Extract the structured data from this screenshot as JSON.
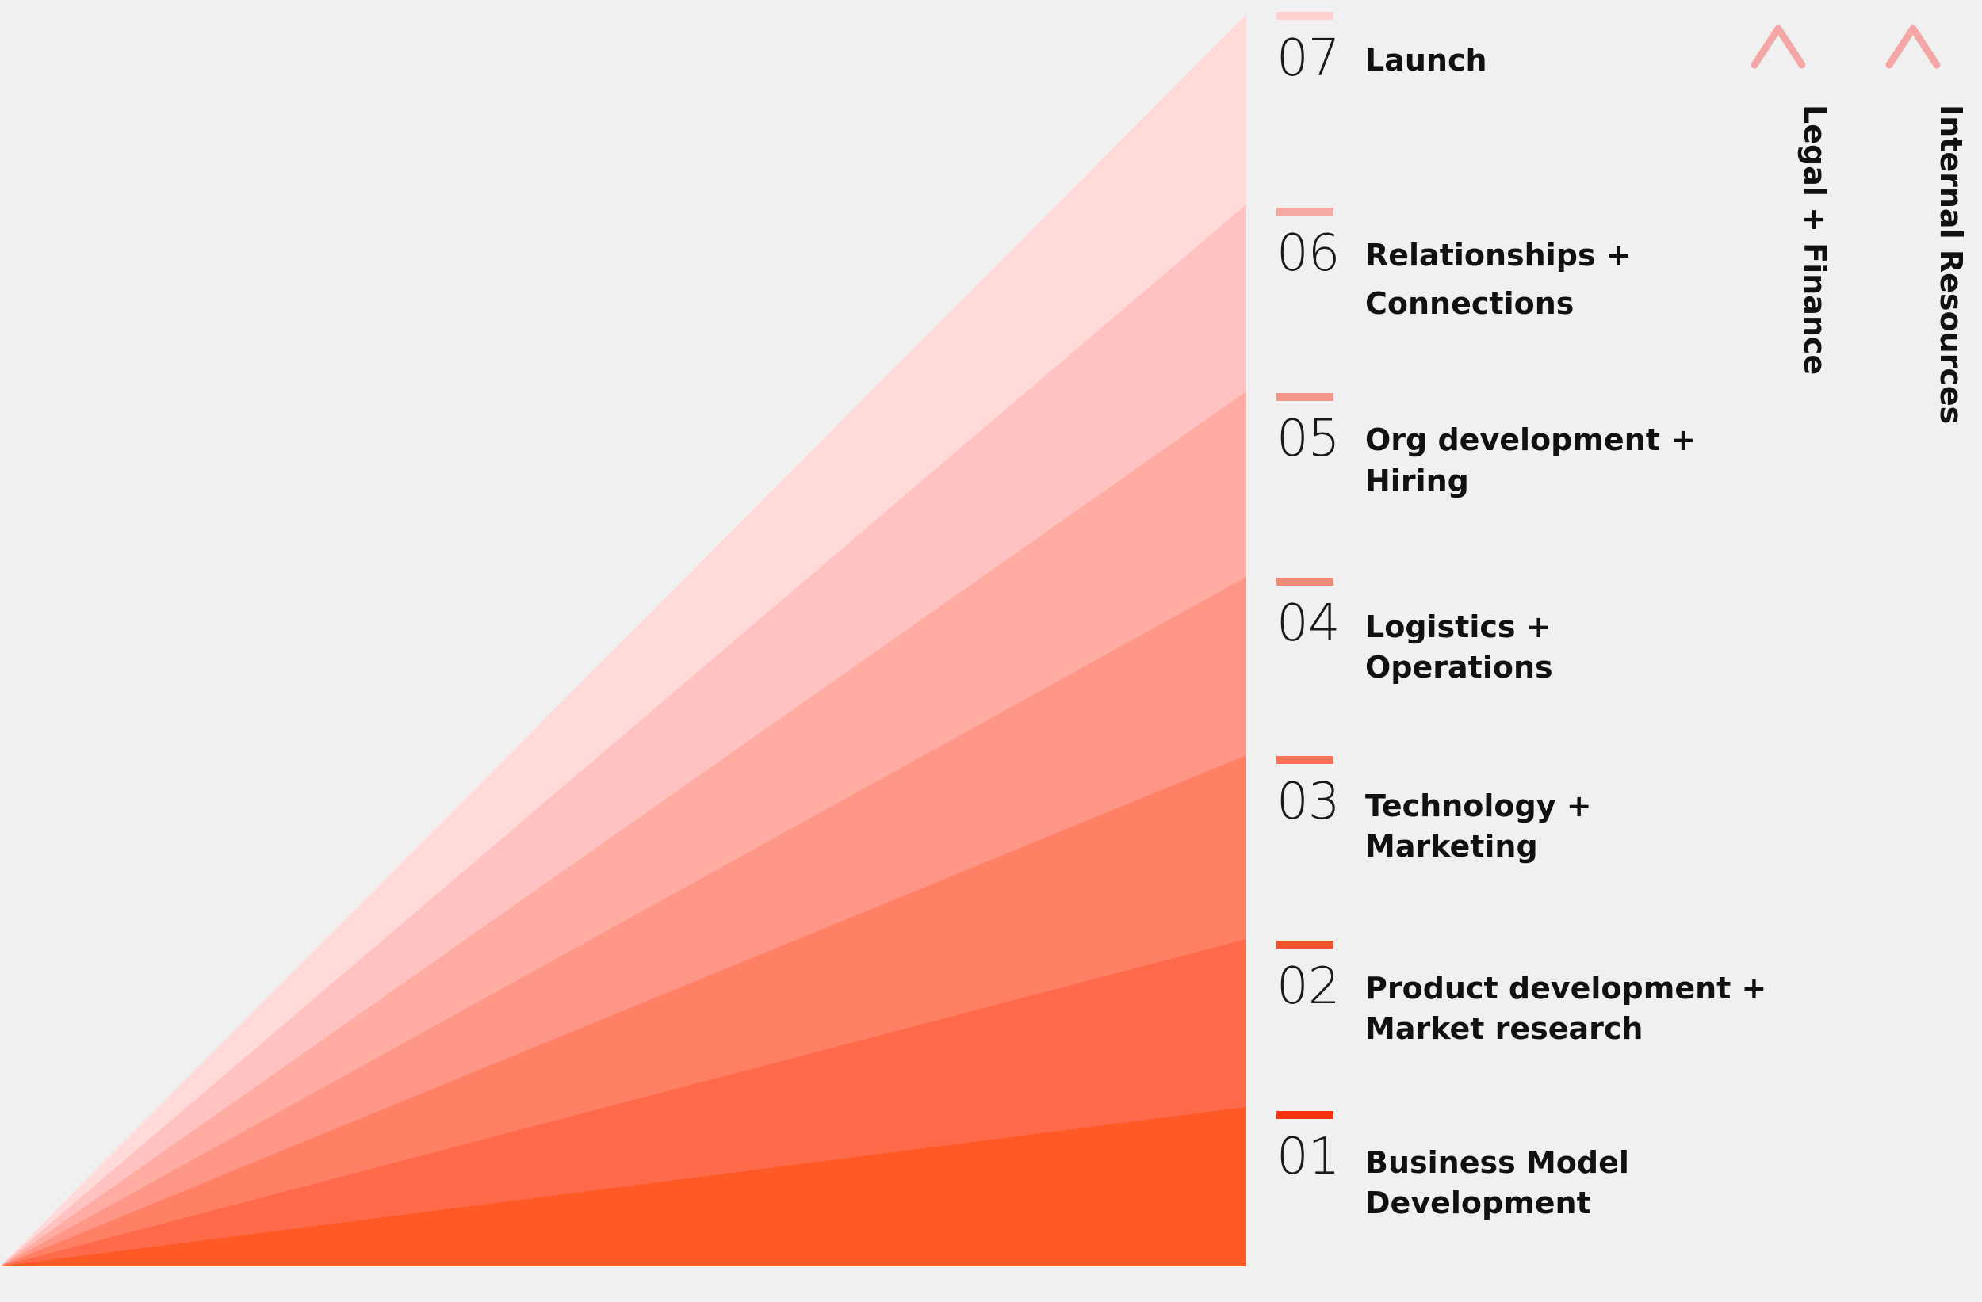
{
  "diagram": {
    "steps": [
      {
        "number": "01",
        "lines": [
          "Business Model",
          "Development"
        ],
        "color": "#ff5a26"
      },
      {
        "number": "02",
        "lines": [
          "Product development +",
          "Market research"
        ],
        "color": "#ff6a4a"
      },
      {
        "number": "03",
        "lines": [
          "Technology +",
          "Marketing"
        ],
        "color": "#ff8065"
      },
      {
        "number": "04",
        "lines": [
          "Logistics +",
          "Operations"
        ],
        "color": "#ff9788"
      },
      {
        "number": "05",
        "lines": [
          "Org development +",
          "Hiring"
        ],
        "color": "#ffaca2"
      },
      {
        "number": "06",
        "lines": [
          "Relationships +",
          "Connections"
        ],
        "color": "#ffc2c0"
      },
      {
        "number": "07",
        "lines": [
          "Launch"
        ],
        "color": "#ffdad9"
      }
    ],
    "side_arrows": [
      {
        "label": "Legal + Finance",
        "color_top": "#f4a7a7",
        "color_bottom": "#f03a1c"
      },
      {
        "label": "Internal Resources",
        "color_top": "#f4a7a7",
        "color_bottom": "#f03a1c"
      }
    ],
    "marker_colors": [
      "#f4330f",
      "#f45330",
      "#f87055",
      "#f28878",
      "#f4978a",
      "#f4a9a5",
      "#ffd0d0"
    ]
  }
}
